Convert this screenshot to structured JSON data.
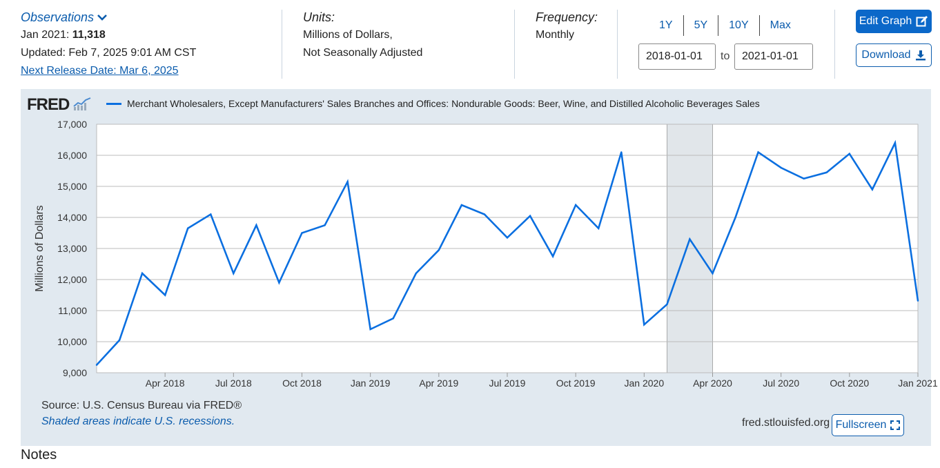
{
  "header": {
    "observations_label": "Observations",
    "obs_date": "Jan 2021:",
    "obs_value": "11,318",
    "updated": "Updated: Feb 7, 2025 9:01 AM CST",
    "next_release": "Next Release Date: Mar 6, 2025",
    "units_label": "Units:",
    "units_line1": "Millions of Dollars,",
    "units_line2": "Not Seasonally Adjusted",
    "frequency_label": "Frequency:",
    "frequency_value": "Monthly",
    "ranges": [
      "1Y",
      "5Y",
      "10Y",
      "Max"
    ],
    "date_from": "2018-01-01",
    "date_to": "2021-01-01",
    "to_label": "to",
    "edit_graph": "Edit Graph",
    "download": "Download"
  },
  "footer": {
    "source": "Source: U.S. Census Bureau via FRED®",
    "recession_note": "Shaded areas indicate U.S. recessions.",
    "site": "fred.stlouisfed.org",
    "fullscreen": "Fullscreen",
    "notes_heading": "Notes"
  },
  "logo_text": "FRED",
  "colors": {
    "line": "#0b6fe0",
    "accent": "#0b68c9",
    "panel": "#e1e9f0",
    "recession": "#e1e6ea"
  },
  "chart_data": {
    "type": "line",
    "title": "",
    "ylabel": "Millions of Dollars",
    "xlabel": "",
    "ylim": [
      9000,
      17000
    ],
    "yticks": [
      "9,000",
      "10,000",
      "11,000",
      "12,000",
      "13,000",
      "14,000",
      "15,000",
      "16,000",
      "17,000"
    ],
    "xticks": [
      {
        "label": "Apr 2018",
        "index": 3
      },
      {
        "label": "Jul 2018",
        "index": 6
      },
      {
        "label": "Oct 2018",
        "index": 9
      },
      {
        "label": "Jan 2019",
        "index": 12
      },
      {
        "label": "Apr 2019",
        "index": 15
      },
      {
        "label": "Jul 2019",
        "index": 18
      },
      {
        "label": "Oct 2019",
        "index": 21
      },
      {
        "label": "Jan 2020",
        "index": 24
      },
      {
        "label": "Apr 2020",
        "index": 27
      },
      {
        "label": "Jul 2020",
        "index": 30
      },
      {
        "label": "Oct 2020",
        "index": 33
      },
      {
        "label": "Jan 2021",
        "index": 36
      }
    ],
    "recession": {
      "start_index": 25,
      "end_index": 27
    },
    "series": [
      {
        "name": "Merchant Wholesalers, Except Manufacturers' Sales Branches and Offices: Nondurable Goods: Beer, Wine, and Distilled Alcoholic Beverages Sales",
        "x": [
          "2018-01",
          "2018-02",
          "2018-03",
          "2018-04",
          "2018-05",
          "2018-06",
          "2018-07",
          "2018-08",
          "2018-09",
          "2018-10",
          "2018-11",
          "2018-12",
          "2019-01",
          "2019-02",
          "2019-03",
          "2019-04",
          "2019-05",
          "2019-06",
          "2019-07",
          "2019-08",
          "2019-09",
          "2019-10",
          "2019-11",
          "2019-12",
          "2020-01",
          "2020-02",
          "2020-03",
          "2020-04",
          "2020-05",
          "2020-06",
          "2020-07",
          "2020-08",
          "2020-09",
          "2020-10",
          "2020-11",
          "2020-12",
          "2021-01"
        ],
        "values": [
          9250,
          10050,
          12200,
          11500,
          13650,
          14100,
          12200,
          13750,
          11900,
          13500,
          13750,
          15150,
          10400,
          10750,
          12200,
          12950,
          14400,
          14100,
          13350,
          14050,
          12750,
          14400,
          13650,
          16100,
          10550,
          11200,
          13300,
          12200,
          14000,
          16100,
          15600,
          15250,
          15450,
          16050,
          14900,
          16400,
          11318
        ]
      }
    ]
  }
}
